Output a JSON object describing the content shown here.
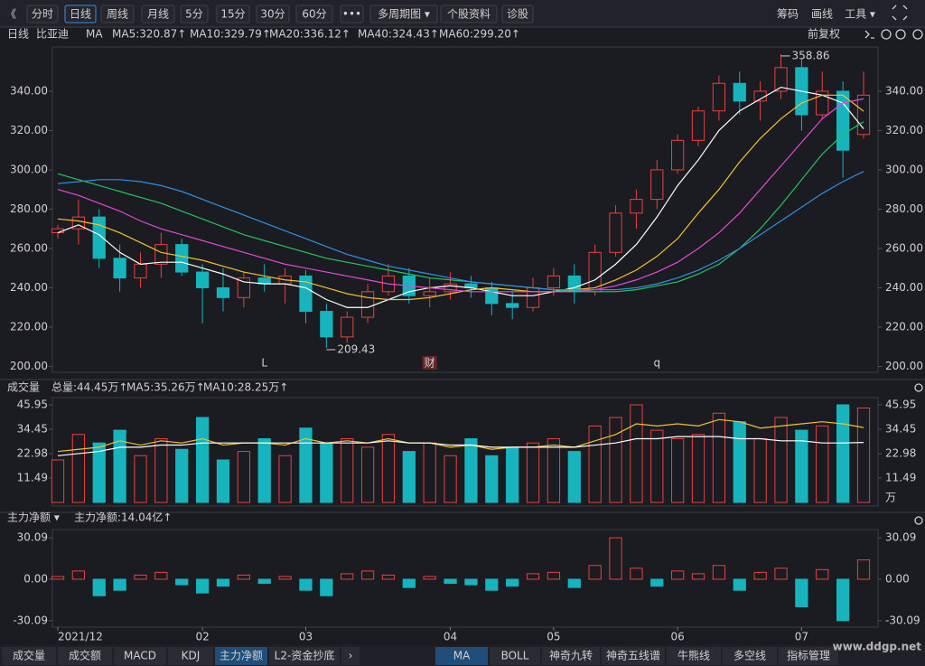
{
  "toolbar": {
    "left": [
      "《",
      "分时",
      "日线",
      "周线",
      "月线",
      "5分",
      "15分",
      "30分",
      "60分",
      "•••",
      "多周期图 ▾",
      "个股资料",
      "诊股"
    ],
    "right": [
      "筹码",
      "画线",
      "工具 ▾"
    ]
  },
  "legend": {
    "period": "日线",
    "name": "比亚迪",
    "ma": "MA",
    "items": [
      {
        "label": "MA5:320.87↑",
        "color": "#ffffff"
      },
      {
        "label": "MA10:329.79↑",
        "color": "#f2c12e"
      },
      {
        "label": "MA20:336.12↑",
        "color": "#e548d8"
      },
      {
        "label": "MA40:324.43↑",
        "color": "#27c35e"
      },
      {
        "label": "MA60:299.20↑",
        "color": "#2f8fe8"
      }
    ],
    "adjust": "前复权"
  },
  "chart_data": [
    {
      "type": "candlestick",
      "up_color": "#e8413f",
      "down_color": "#17b4bd",
      "candles": [
        [
          268,
          272,
          265,
          270
        ],
        [
          270,
          285,
          262,
          276
        ],
        [
          276,
          280,
          250,
          255
        ],
        [
          255,
          262,
          238,
          245
        ],
        [
          245,
          258,
          240,
          252
        ],
        [
          252,
          268,
          245,
          262
        ],
        [
          262,
          265,
          246,
          248
        ],
        [
          248,
          252,
          222,
          240
        ],
        [
          240,
          250,
          228,
          235
        ],
        [
          235,
          248,
          230,
          245
        ],
        [
          245,
          252,
          238,
          242
        ],
        [
          242,
          250,
          232,
          246
        ],
        [
          246,
          249,
          222,
          228
        ],
        [
          228,
          232,
          209.43,
          215
        ],
        [
          215,
          228,
          212,
          225
        ],
        [
          225,
          242,
          222,
          238
        ],
        [
          238,
          252,
          236,
          246
        ],
        [
          246,
          250,
          232,
          236
        ],
        [
          236,
          245,
          230,
          238
        ],
        [
          238,
          248,
          234,
          242
        ],
        [
          242,
          246,
          235,
          240
        ],
        [
          240,
          243,
          226,
          232
        ],
        [
          232,
          238,
          224,
          230
        ],
        [
          230,
          245,
          228,
          240
        ],
        [
          240,
          250,
          236,
          246
        ],
        [
          246,
          252,
          232,
          238
        ],
        [
          238,
          262,
          236,
          258
        ],
        [
          258,
          282,
          256,
          278
        ],
        [
          278,
          290,
          270,
          285
        ],
        [
          285,
          305,
          280,
          300
        ],
        [
          300,
          318,
          298,
          315
        ],
        [
          315,
          332,
          312,
          330
        ],
        [
          330,
          348,
          325,
          344
        ],
        [
          344,
          350,
          328,
          335
        ],
        [
          335,
          345,
          325,
          340
        ],
        [
          340,
          358.86,
          336,
          352
        ],
        [
          352,
          356,
          320,
          328
        ],
        [
          328,
          350,
          326,
          340
        ],
        [
          340,
          345,
          296,
          310
        ],
        [
          318,
          350,
          316,
          338
        ]
      ],
      "lines": [
        {
          "color": "#ffffff",
          "values": [
            268,
            272,
            267,
            258,
            252,
            253,
            253,
            250,
            247,
            243,
            242,
            242,
            240,
            234,
            230,
            230,
            234,
            238,
            240,
            241,
            240,
            238,
            236,
            236,
            238,
            240,
            244,
            252,
            262,
            276,
            292,
            305,
            320,
            330,
            336,
            342,
            340,
            338,
            334,
            320.87
          ]
        },
        {
          "color": "#f2c12e",
          "values": [
            275,
            274,
            272,
            268,
            263,
            258,
            256,
            254,
            251,
            248,
            246,
            244,
            243,
            240,
            237,
            235,
            234,
            234,
            235,
            237,
            239,
            240,
            239,
            238,
            238,
            239,
            240,
            244,
            249,
            256,
            265,
            278,
            290,
            304,
            316,
            326,
            334,
            338,
            338,
            329.79
          ]
        },
        {
          "color": "#e548d8",
          "values": [
            290,
            287,
            283,
            279,
            274,
            270,
            267,
            264,
            261,
            258,
            255,
            252,
            250,
            248,
            246,
            244,
            242,
            241,
            240,
            239,
            238,
            238,
            238,
            238,
            238,
            238,
            239,
            241,
            244,
            248,
            253,
            260,
            268,
            278,
            290,
            302,
            314,
            326,
            334,
            336.12
          ]
        },
        {
          "color": "#27c35e",
          "values": [
            298,
            295,
            292,
            289,
            286,
            283,
            279,
            275,
            271,
            267,
            264,
            261,
            258,
            255,
            253,
            251,
            249,
            247,
            245,
            244,
            243,
            242,
            241,
            240,
            239,
            238,
            238,
            238,
            239,
            241,
            243,
            247,
            252,
            260,
            270,
            282,
            295,
            308,
            318,
            324.43
          ]
        },
        {
          "color": "#2f8fe8",
          "values": [
            293,
            294,
            295,
            295,
            294,
            292,
            289,
            285,
            281,
            277,
            273,
            269,
            265,
            261,
            257,
            254,
            251,
            249,
            247,
            245,
            243,
            242,
            241,
            240,
            239,
            239,
            239,
            239,
            240,
            242,
            245,
            249,
            254,
            260,
            267,
            274,
            281,
            288,
            294,
            299.2
          ]
        }
      ],
      "annotations": [
        {
          "text": "358.86",
          "index": 35,
          "value": 358.86,
          "side": "right"
        },
        {
          "text": "209.43",
          "index": 13,
          "value": 209.43,
          "side": "right"
        }
      ],
      "events": [
        {
          "text": "L",
          "index": 10,
          "color": "#2fa8d8"
        },
        {
          "text": "财",
          "index": 18,
          "color": "#e8413f"
        },
        {
          "text": "q",
          "index": 29,
          "color": "#e8413f"
        }
      ],
      "ylim": [
        197,
        362.5
      ],
      "yticks": [
        {
          "value": 200,
          "label": "200.00"
        },
        {
          "value": 220,
          "label": "220.00"
        },
        {
          "value": 240,
          "label": "240.00"
        },
        {
          "value": 260,
          "label": "260.00"
        },
        {
          "value": 280,
          "label": "280.00"
        },
        {
          "value": 300,
          "label": "300.00"
        },
        {
          "value": 320,
          "label": "320.00"
        },
        {
          "value": 340,
          "label": "340.00"
        }
      ]
    },
    {
      "type": "bar",
      "title": "成交量",
      "headers": [
        {
          "label": "总量:44.45万↑",
          "color": "#e8413f"
        },
        {
          "label": "MA5:35.26万↑",
          "color": "#f2c12e"
        },
        {
          "label": "MA10:28.25万↑",
          "color": "#ffffff"
        }
      ],
      "unit": "万",
      "values": [
        20,
        32,
        28,
        34,
        22,
        30,
        25,
        40,
        20,
        24,
        30,
        22,
        35,
        28,
        30,
        26,
        32,
        24,
        28,
        22,
        30,
        22,
        26,
        28,
        30,
        24,
        36,
        40,
        45.95,
        34,
        30,
        32,
        42,
        38,
        30,
        40,
        34,
        36,
        45.95,
        44.45
      ],
      "lines": [
        {
          "color": "#f2c12e",
          "values": [
            24,
            25,
            26,
            29,
            27,
            29,
            28,
            30,
            27,
            28,
            28,
            27,
            30,
            28,
            29,
            28,
            30,
            28,
            28,
            26,
            27,
            25,
            26,
            26,
            27,
            26,
            29,
            32,
            37,
            36,
            37,
            36,
            39,
            38,
            35,
            36,
            37,
            38,
            37,
            35.26
          ]
        },
        {
          "color": "#ffffff",
          "values": [
            22,
            23,
            24,
            26,
            26,
            27,
            27,
            28,
            28,
            28,
            28,
            28,
            28,
            28,
            28,
            28,
            29,
            28,
            28,
            27,
            27,
            26,
            26,
            26,
            26,
            26,
            27,
            28,
            30,
            30,
            31,
            31,
            31,
            30,
            30,
            29,
            29,
            28,
            28,
            28.25
          ]
        }
      ],
      "ylim": [
        0,
        48.5
      ],
      "yticks": [
        11.49,
        22.98,
        34.45,
        45.95
      ]
    },
    {
      "type": "bar",
      "title": "主力净额 ▾",
      "headers": [
        {
          "label": "主力净额:14.04亿↑",
          "color": "#e8413f"
        }
      ],
      "values": [
        2,
        6,
        -12,
        -8,
        3,
        5,
        -4,
        -10,
        -5,
        3,
        -3,
        2,
        -8,
        -12,
        4,
        6,
        3,
        -6,
        2,
        -3,
        -4,
        -8,
        -5,
        4,
        5,
        -6,
        10,
        30.09,
        8,
        -5,
        6,
        4,
        10,
        -8,
        5,
        8,
        -20,
        7,
        -30.09,
        14.04
      ],
      "ylim": [
        -34.8,
        36.1
      ],
      "yticks": [
        -30.09,
        {
          "value": 0,
          "label": "0.00"
        },
        30.09
      ],
      "xticks": [
        {
          "value": 0,
          "label": "2021/12"
        },
        {
          "value": 7,
          "label": "02"
        },
        {
          "value": 12,
          "label": "03"
        },
        {
          "value": 19,
          "label": "04"
        },
        {
          "value": 24,
          "label": "05"
        },
        {
          "value": 30,
          "label": "06"
        },
        {
          "value": 36,
          "label": "07"
        }
      ]
    }
  ],
  "tabs": {
    "left": [
      "成交量",
      "成交额",
      "MACD",
      "KDJ",
      "主力净额",
      "L2-资金抄底",
      "›"
    ],
    "right": [
      "MA",
      "BOLL",
      "神奇九转",
      "神奇五线谱",
      "牛熊线",
      "多空线",
      "指标管理"
    ]
  },
  "watermark": "www.ddgp.net"
}
